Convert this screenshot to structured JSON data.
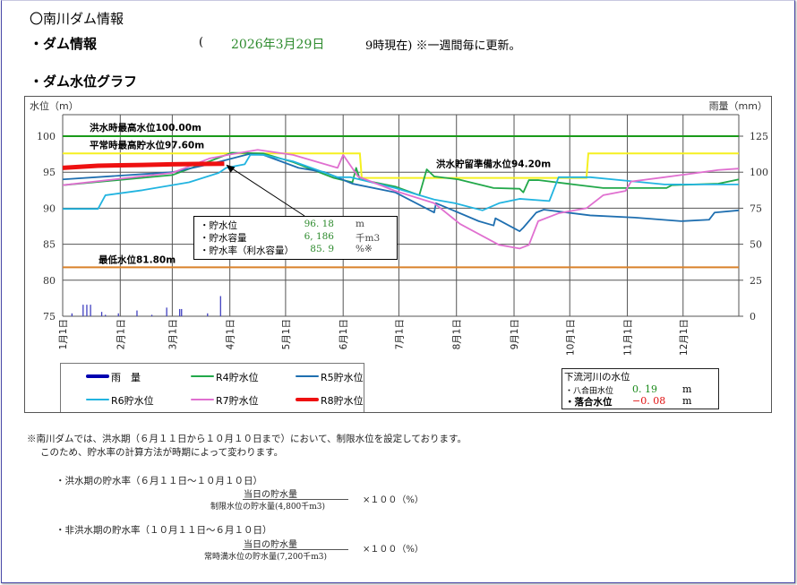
{
  "header": {
    "title": "〇南川ダム情報",
    "dam_info_label": "・ダム情報",
    "paren_open": "(",
    "date": "2026年3月29日",
    "time_note": "9時現在) ※一週間毎に更新。",
    "graph_label": "・ダム水位グラフ"
  },
  "chart_data": {
    "type": "line",
    "ylabel": "水位（m）",
    "y2label": "雨量（mm）",
    "ylim": [
      75,
      103
    ],
    "y2lim": [
      0,
      140
    ],
    "yticks": [
      75,
      80,
      85,
      90,
      95,
      100
    ],
    "y2ticks": [
      0,
      25,
      50,
      75,
      100,
      125
    ],
    "xlim": [
      "01-01",
      "12-31"
    ],
    "xticks": [
      {
        "date": "01-01",
        "label": "1月1日"
      },
      {
        "date": "02-01",
        "label": "2月1日"
      },
      {
        "date": "03-01",
        "label": "3月1日"
      },
      {
        "date": "04-01",
        "label": "4月1日"
      },
      {
        "date": "05-01",
        "label": "5月1日"
      },
      {
        "date": "06-01",
        "label": "6月1日"
      },
      {
        "date": "07-01",
        "label": "7月1日"
      },
      {
        "date": "08-01",
        "label": "8月1日"
      },
      {
        "date": "09-01",
        "label": "9月1日"
      },
      {
        "date": "10-01",
        "label": "10月1日"
      },
      {
        "date": "11-01",
        "label": "11月1日"
      },
      {
        "date": "12-01",
        "label": "12月1日"
      }
    ],
    "grid": true,
    "reference_lines": [
      {
        "label": "洪水時最高水位100.00m",
        "value": 100.0,
        "color": "#1a9a1a"
      },
      {
        "label": "最低水位81.80m",
        "value": 81.8,
        "color": "#d9822b"
      }
    ],
    "restricted_level": {
      "color": "#f5f020",
      "segments": [
        {
          "from": "01-01",
          "to": "06-10",
          "value": 97.6,
          "label": "平常時最高貯水位97.60m"
        },
        {
          "from": "06-11",
          "to": "10-10",
          "value": 94.2,
          "label": "洪水貯留準備水位94.20m"
        },
        {
          "from": "10-11",
          "to": "12-31",
          "value": 97.6
        }
      ]
    },
    "rainfall": {
      "name": "雨　量",
      "color": "#0000b0",
      "unit": "mm",
      "x": [
        "01-06",
        "01-12",
        "01-14",
        "01-16",
        "01-22",
        "01-24",
        "01-31",
        "02-10",
        "02-18",
        "02-26",
        "03-05",
        "03-06",
        "03-20",
        "03-27"
      ],
      "values": [
        2,
        8,
        8,
        8,
        3,
        1,
        2,
        4,
        1,
        6,
        5,
        5,
        2,
        14
      ]
    },
    "series": [
      {
        "name": "R4貯水位",
        "color": "#22a84a",
        "x": [
          "01-01",
          "03-01",
          "03-21",
          "04-02",
          "04-19",
          "05-05",
          "05-27",
          "06-06",
          "06-08",
          "06-10",
          "06-29",
          "07-12",
          "07-16",
          "07-20",
          "08-02",
          "08-21",
          "09-04",
          "09-06",
          "09-09",
          "09-14",
          "10-03",
          "10-19",
          "11-22",
          "11-25",
          "12-20",
          "12-31"
        ],
        "y": [
          93.2,
          94.6,
          96.5,
          97.7,
          97.6,
          96.4,
          94.2,
          93.6,
          95.6,
          94.0,
          93.0,
          91.8,
          95.4,
          94.4,
          94.0,
          92.8,
          92.7,
          92.2,
          93.9,
          93.9,
          93.3,
          92.8,
          92.8,
          93.2,
          93.4,
          94.0
        ]
      },
      {
        "name": "R5貯水位",
        "color": "#1f6fb0",
        "x": [
          "01-01",
          "03-01",
          "03-21",
          "04-11",
          "04-19",
          "05-08",
          "05-22",
          "06-06",
          "06-29",
          "07-20",
          "07-21",
          "08-13",
          "08-21",
          "08-22",
          "09-04",
          "09-06",
          "09-13",
          "09-17",
          "10-12",
          "11-05",
          "11-30",
          "12-15",
          "12-18",
          "12-31"
        ],
        "y": [
          94.0,
          95.0,
          96.1,
          97.5,
          97.4,
          95.6,
          95.0,
          93.4,
          92.2,
          89.4,
          90.7,
          88.2,
          87.6,
          88.6,
          86.8,
          87.3,
          89.4,
          89.8,
          89.0,
          88.7,
          88.2,
          88.4,
          89.4,
          89.7
        ]
      },
      {
        "name": "R6貯水位",
        "color": "#22b4e0",
        "x": [
          "01-01",
          "01-20",
          "01-24",
          "02-13",
          "03-10",
          "03-26",
          "03-30",
          "04-09",
          "04-12",
          "04-19",
          "05-05",
          "05-29",
          "06-05",
          "06-29",
          "07-20",
          "07-31",
          "08-15",
          "08-24",
          "09-04",
          "09-20",
          "09-25",
          "10-12",
          "11-05",
          "11-21",
          "12-31"
        ],
        "y": [
          89.9,
          89.9,
          91.8,
          92.5,
          93.6,
          94.9,
          95.6,
          96.1,
          97.4,
          97.4,
          96.5,
          94.3,
          94.3,
          92.8,
          91.2,
          90.7,
          89.7,
          90.7,
          91.3,
          91.0,
          94.3,
          94.3,
          93.7,
          93.3,
          93.3
        ]
      },
      {
        "name": "R7貯水位",
        "color": "#e070d0",
        "x": [
          "01-01",
          "03-01",
          "03-21",
          "04-02",
          "04-16",
          "05-05",
          "05-29",
          "06-01",
          "06-09",
          "06-29",
          "07-20",
          "08-03",
          "08-24",
          "09-04",
          "09-09",
          "09-14",
          "09-25",
          "10-10",
          "10-19",
          "10-31",
          "11-03",
          "11-21",
          "12-20",
          "12-31"
        ],
        "y": [
          93.2,
          94.9,
          96.9,
          97.5,
          98.1,
          97.4,
          95.6,
          97.4,
          94.4,
          92.4,
          90.7,
          87.8,
          84.9,
          84.4,
          84.9,
          88.2,
          89.3,
          90.0,
          91.8,
          92.4,
          93.7,
          94.3,
          95.3,
          95.5
        ]
      },
      {
        "name": "R8貯水位",
        "color": "#ee1111",
        "x": [
          "01-01",
          "01-20",
          "02-13",
          "03-01",
          "03-15",
          "03-29"
        ],
        "y": [
          95.6,
          95.9,
          96.0,
          96.1,
          96.15,
          96.18
        ]
      }
    ],
    "info_box": {
      "rows": [
        {
          "label": "・貯水位",
          "value": "96. 18",
          "unit": "m"
        },
        {
          "label": "・貯水容量",
          "value": "6, 186",
          "unit": "千m3"
        },
        {
          "label": "・貯水率（利水容量）",
          "value": "85. 9",
          "unit": "%※"
        }
      ],
      "points_to": {
        "date": "03-29",
        "value": 96.18
      }
    },
    "downstream": {
      "title": "下流河川の水位",
      "rows": [
        {
          "label": "・八合田水位",
          "value": "0. 19",
          "unit": "m",
          "color": "#1a8a1a"
        },
        {
          "label": "・落合水位",
          "value": "−0. 08",
          "unit": "m",
          "color": "#e01010"
        }
      ]
    }
  },
  "notes": {
    "line1": "※南川ダムでは、洪水期（６月１１日から１０月１０日まで）において、制限水位を設定しております。",
    "line2": "このため、貯水率の計算方法が時期によって変わります。",
    "flood": {
      "label": "・洪水期の貯水率（６月１１日～１０月１０日）",
      "numerator": "当日の貯水量",
      "denominator": "制限水位の貯水量(4,800千m3)",
      "multiplier": "×１００（%）"
    },
    "nonflood": {
      "label": "・非洪水期の貯水率（１０月１１日～６月１０日）",
      "numerator": "当日の貯水量",
      "denominator": "常時満水位の貯水量(7,200千m3)",
      "multiplier": "×１００（%）"
    }
  }
}
